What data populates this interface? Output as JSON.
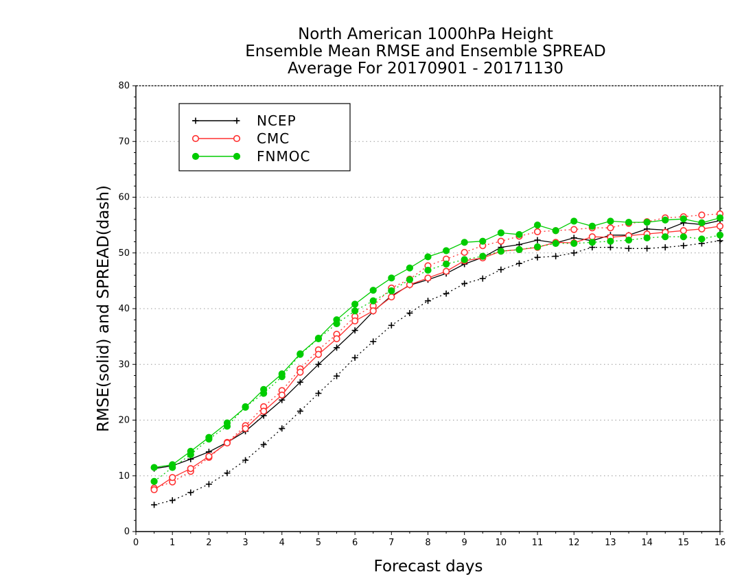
{
  "chart_data": {
    "type": "line",
    "title": [
      "North American 1000hPa Height",
      "Ensemble Mean RMSE and Ensemble SPREAD",
      "Average For 20170901 - 20171130"
    ],
    "xlabel": "Forecast days",
    "ylabel": "RMSE(solid) and SPREAD(dash)",
    "xlim": [
      0,
      16
    ],
    "ylim": [
      0,
      80
    ],
    "xticks": [
      "0",
      "1",
      "2",
      "3",
      "4",
      "5",
      "6",
      "7",
      "8",
      "9",
      "10",
      "11",
      "12",
      "13",
      "14",
      "15",
      "16"
    ],
    "yticks": [
      "0",
      "10",
      "20",
      "30",
      "40",
      "50",
      "60",
      "70",
      "80"
    ],
    "grid": "horizontal dotted",
    "legend_position": "top-left",
    "x": [
      0.5,
      1,
      1.5,
      2,
      2.5,
      3,
      3.5,
      4,
      4.5,
      5,
      5.5,
      6,
      6.5,
      7,
      7.5,
      8,
      8.5,
      9,
      9.5,
      10,
      10.5,
      11,
      11.5,
      12,
      12.5,
      13,
      13.5,
      14,
      14.5,
      15,
      15.5,
      16
    ],
    "series": [
      {
        "name": "NCEP",
        "color": "#000000",
        "marker": "plus",
        "rmse": [
          11.3,
          11.8,
          13.0,
          14.3,
          16.0,
          18.0,
          20.8,
          23.6,
          26.8,
          30.0,
          33.0,
          36.1,
          39.5,
          42.3,
          44.2,
          45.2,
          46.3,
          48.0,
          49.2,
          51.0,
          51.5,
          52.3,
          51.8,
          52.7,
          52.2,
          53.2,
          53.2,
          54.3,
          54.1,
          55.4,
          55.1,
          55.8
        ],
        "spread": [
          4.8,
          5.6,
          7.0,
          8.5,
          10.5,
          12.8,
          15.6,
          18.5,
          21.6,
          24.8,
          27.9,
          31.2,
          34.1,
          37.0,
          39.2,
          41.4,
          42.7,
          44.5,
          45.4,
          47.0,
          48.1,
          49.2,
          49.4,
          50.0,
          51.0,
          51.0,
          50.8,
          50.8,
          51.0,
          51.3,
          51.7,
          52.2
        ]
      },
      {
        "name": "CMC",
        "color": "#ff3030",
        "marker": "open-circle",
        "rmse": [
          7.5,
          9.7,
          11.3,
          13.5,
          15.9,
          18.5,
          21.6,
          24.5,
          28.6,
          31.8,
          34.6,
          37.8,
          39.6,
          42.1,
          44.3,
          45.5,
          46.7,
          48.6,
          49.1,
          50.3,
          50.6,
          51.0,
          51.9,
          51.8,
          52.9,
          52.8,
          53.1,
          53.4,
          53.7,
          54.0,
          54.3,
          54.8
        ],
        "spread": [
          7.8,
          8.9,
          10.8,
          13.3,
          16.0,
          19.0,
          22.4,
          25.3,
          29.2,
          32.6,
          35.4,
          38.6,
          40.5,
          43.7,
          45.3,
          47.7,
          48.9,
          50.1,
          51.3,
          52.1,
          53.0,
          53.8,
          54.0,
          54.2,
          54.5,
          54.5,
          55.3,
          55.6,
          56.3,
          56.5,
          56.8,
          57.0
        ]
      },
      {
        "name": "FNMOC",
        "color": "#00cc00",
        "marker": "filled-circle",
        "rmse": [
          11.5,
          12.0,
          14.4,
          16.9,
          19.5,
          22.3,
          25.5,
          28.3,
          31.9,
          34.7,
          38.0,
          40.8,
          43.3,
          45.5,
          47.3,
          49.3,
          50.4,
          51.9,
          52.1,
          53.6,
          53.3,
          55.0,
          54.0,
          55.7,
          54.8,
          55.7,
          55.5,
          55.5,
          55.9,
          56.1,
          55.4,
          56.3
        ],
        "spread": [
          9.0,
          11.5,
          13.8,
          16.6,
          18.9,
          22.4,
          24.8,
          27.8,
          31.8,
          34.6,
          37.3,
          39.6,
          41.4,
          43.2,
          45.2,
          46.9,
          48.0,
          48.8,
          49.4,
          50.3,
          50.6,
          51.1,
          51.7,
          51.7,
          51.9,
          52.1,
          52.3,
          52.7,
          52.9,
          52.9,
          52.5,
          53.2
        ]
      }
    ]
  }
}
